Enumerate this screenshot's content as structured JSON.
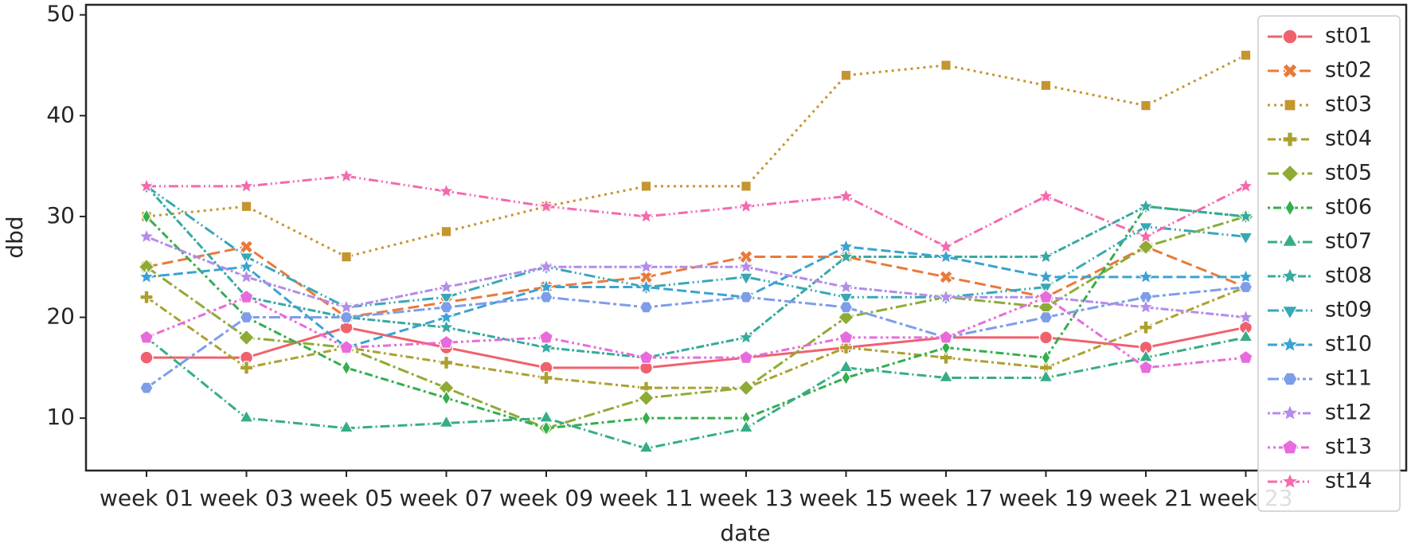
{
  "chart_data": {
    "type": "line",
    "x_label": "date",
    "y_label": "dbd",
    "categories": [
      "week 01",
      "week 03",
      "week 05",
      "week 07",
      "week 09",
      "week 11",
      "week 13",
      "week 15",
      "week 17",
      "week 19",
      "week 21",
      "week 23"
    ],
    "ylim": [
      4.8,
      51
    ],
    "yticks": [
      10,
      20,
      30,
      40,
      50
    ],
    "legend": "upper right",
    "series": [
      {
        "name": "st01",
        "color": "#f0616e",
        "values": [
          16,
          16,
          19,
          17,
          15,
          15,
          16,
          17,
          18,
          18,
          17,
          19
        ]
      },
      {
        "name": "st02",
        "color": "#e97a3a",
        "values": [
          25,
          27,
          20,
          21.5,
          23,
          24,
          26,
          26,
          24,
          22,
          27,
          23
        ]
      },
      {
        "name": "st03",
        "color": "#c59530",
        "values": [
          30,
          31,
          26,
          28.5,
          31,
          33,
          33,
          44,
          45,
          43,
          41,
          46
        ]
      },
      {
        "name": "st04",
        "color": "#aca12f",
        "values": [
          22,
          15,
          17,
          15.5,
          14,
          13,
          13,
          17,
          16,
          15,
          19,
          23
        ]
      },
      {
        "name": "st05",
        "color": "#8eab35",
        "values": [
          25,
          18,
          17,
          13,
          9,
          12,
          13,
          20,
          22,
          21,
          27,
          30
        ]
      },
      {
        "name": "st06",
        "color": "#34ae4f",
        "values": [
          30,
          20,
          15,
          12,
          9,
          10,
          10,
          14,
          17,
          16,
          31,
          30
        ]
      },
      {
        "name": "st07",
        "color": "#36ad85",
        "values": [
          18,
          10,
          9,
          9.5,
          10,
          7,
          9,
          15,
          14,
          14,
          16,
          18
        ]
      },
      {
        "name": "st08",
        "color": "#37aa9f",
        "values": [
          33,
          22,
          20,
          19,
          17,
          16,
          18,
          26,
          26,
          26,
          31,
          30
        ]
      },
      {
        "name": "st09",
        "color": "#39a7b6",
        "values": [
          33,
          26,
          21,
          22,
          25,
          23,
          24,
          22,
          22,
          23,
          29,
          28
        ]
      },
      {
        "name": "st10",
        "color": "#3ba3d2",
        "values": [
          24,
          25,
          17,
          20,
          23,
          23,
          22,
          27,
          26,
          24,
          24,
          24
        ]
      },
      {
        "name": "st11",
        "color": "#7e9de9",
        "values": [
          13,
          20,
          20,
          21,
          22,
          21,
          22,
          21,
          18,
          20,
          22,
          23
        ]
      },
      {
        "name": "st12",
        "color": "#b48ce9",
        "values": [
          28,
          24,
          21,
          23,
          25,
          25,
          25,
          23,
          22,
          22,
          21,
          20
        ]
      },
      {
        "name": "st13",
        "color": "#e86bdc",
        "values": [
          18,
          22,
          17,
          17.5,
          18,
          16,
          16,
          18,
          18,
          22,
          15,
          16
        ]
      },
      {
        "name": "st14",
        "color": "#f36aae",
        "values": [
          33,
          33,
          34,
          32.5,
          31,
          30,
          31,
          32,
          27,
          32,
          28,
          33
        ]
      }
    ]
  }
}
